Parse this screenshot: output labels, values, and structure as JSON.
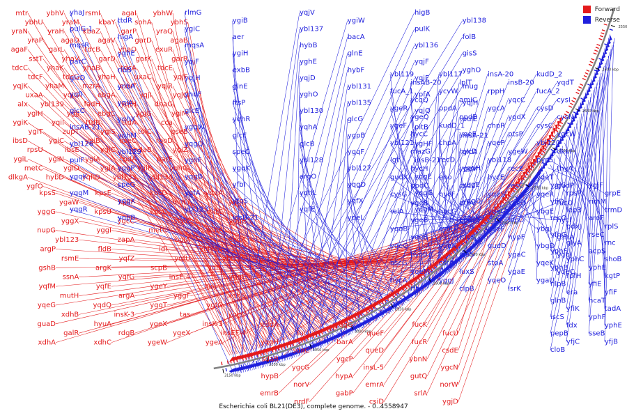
{
  "title": "Escherichia coli BL21(DE3), complete genome. - 0..4558947",
  "legend": [
    {
      "label": "Forward",
      "color": "#e41a1c"
    },
    {
      "label": "Reverse",
      "color": "#2020dd"
    }
  ],
  "colors": {
    "forward": "#e41a1c",
    "reverse": "#2020dd",
    "backbone": "#808080"
  },
  "ticks": [
    "3150 kbp",
    "3100 kbp",
    "3050 kbp",
    "3000 kbp",
    "2950 kbp",
    "2900 kbp",
    "2850 kbp",
    "2800 kbp",
    "2750 kbp",
    "2700 kbp",
    "2650 kbp",
    "2600 kbp",
    "2550 kbp"
  ],
  "forward_genes": [
    [
      "mtr",
      "ybhV",
      "rsmI",
      "agaI",
      "ybhW",
      "ybhU",
      "yraM",
      "kbaY",
      "sohA",
      "ybhS",
      "yraN",
      "yraH",
      "kbaZ",
      "garP",
      "yraQ",
      "yraP",
      "agaD",
      "agaV",
      "garD",
      "agaB",
      "agaF",
      "garL",
      "tdcB",
      "yhaO",
      "exuR",
      "sstT",
      "yhaV",
      "garD",
      "garK",
      "garR",
      "tdcC",
      "yhaK",
      "yhaB",
      "tdcA",
      "tdcE",
      "tdcF",
      "tdcG",
      "yhaH",
      "uxaC",
      "yqjF",
      "yqjK",
      "yhaM",
      "mzrA",
      "exuT",
      "yqjR",
      "uxaA",
      "yqjG",
      "ebgA",
      "yqjI",
      "yqjC",
      "alx",
      "ybl139",
      "fadH",
      "yqjH",
      "dnaG",
      "ygiH",
      "ygjJ",
      "ebgC",
      "ygjG",
      "ygiM",
      "ygiK",
      "yqiI",
      "ttdB",
      "ttdA",
      "cca",
      "ygiT",
      "zupT",
      "ygiS",
      "tolC",
      "qseB",
      "ibsD",
      "ygiC",
      "ygiB",
      "qseC",
      "rpoD",
      "rpsU",
      "ibsE",
      "ygiC",
      "mdaB",
      "ygiZ",
      "ygiL",
      "ygiN",
      "ygiA",
      "cpdA",
      "parE",
      "metC",
      "ygiD",
      "ygiA",
      "ygiF",
      "yqhG",
      "dlkgA",
      "hybD",
      "yqhD",
      "ybl133",
      "ybl134",
      "ygfO"
    ],
    [
      "kpsS",
      "kpsE",
      "kpsD",
      "ygaA",
      "ygaW",
      "kpsF",
      "mutY",
      "yggC",
      "yggG",
      "kpsU",
      "kpsC",
      "mltC",
      "yggX",
      "ygcC",
      "scpC",
      "yggE",
      "nupG",
      "yggI",
      "metC",
      "scpA",
      "ybl123",
      "zapA",
      "bglA",
      "endA",
      "argP",
      "fldB",
      "idi",
      "ybl124",
      "rsmE",
      "yqfZ",
      "yqfU",
      "ybl125",
      "gshB",
      "argK",
      "scpB",
      "yqfS",
      "ssnA",
      "yqfG",
      "insE-4",
      "yggE",
      "yqfM",
      "yqfE",
      "ygeY",
      "insJ-3",
      "mutH",
      "argA",
      "yggF",
      "xdhD",
      "yqeG",
      "yqdQ",
      "yggT",
      "ygfO",
      "xdhB",
      "insK-3",
      "tas",
      "yggU",
      "guaD",
      "hyuA",
      "ygeX",
      "insK-3",
      "galR",
      "rdgB",
      "ygeX",
      "insEF-4",
      "xdhA",
      "xdhC",
      "ygeW",
      "ygeA"
    ],
    [
      "csdA",
      "yqgG",
      "fucK",
      "fucI",
      "queF",
      "fucU",
      "yqgH",
      "barA",
      "fucR",
      "sdaC",
      "queD",
      "csdE",
      "sdaB",
      "ygcP",
      "ybnN",
      "ygcG",
      "insL-5",
      "ygcN",
      "hypB",
      "hypA",
      "gutQ",
      "norV",
      "emrA",
      "norW",
      "emrB",
      "gabP",
      "srlA",
      "nrdF",
      "csiD",
      "ygjD"
    ]
  ],
  "reverse_genes": [
    [
      "yhaJ",
      "rlmG",
      "yqjV",
      "higB",
      "ttdR",
      "ygiB",
      "ygiW",
      "ybl138",
      "pulG-1",
      "ygiC",
      "ybl137",
      "pulK",
      "higA",
      "aer",
      "bacA",
      "folB",
      "mqsR",
      "mqsA",
      "hybB",
      "ybl136",
      "yghE",
      "ygiH",
      "glnE",
      "gisS",
      "parC",
      "yqjF",
      "yghE",
      "yqjF",
      "ribB",
      "exbB",
      "hybF",
      "yghO",
      "glcD",
      "yqjH",
      "yqjD",
      "ygiF",
      "ynbA",
      "glnE",
      "ybl131",
      "mug",
      "yqfI",
      "yhbF",
      "yghO",
      "ypfA",
      "yqiA",
      "ftsP",
      "ybl135",
      "yqjH",
      "glcC",
      "glcE",
      "ybl130",
      "yqjQ",
      "yqhX",
      "yqhR",
      "glcG",
      "pulE",
      "insAB-21",
      "ygqW",
      "yqhA",
      "pitB",
      "yqhM",
      "glcF",
      "ygpB",
      "insA-21",
      "ybl126",
      "yqgQ",
      "glcB",
      "ygHF",
      "ybl129",
      "speC",
      "ygqF",
      "glcA",
      "pulF",
      "yghF",
      "ybl128",
      "insB-21",
      "yqgP",
      "ygqK",
      "ybl127",
      "ygpH",
      "ygqK",
      "yqgB",
      "argO",
      "yqgE",
      "speG",
      "yfbI",
      "yqgD",
      "yqgE",
      "yqgM",
      "yqfA",
      "yqhL",
      "yggG",
      "yqgX",
      "yfqS",
      "yqfX",
      "yqgQ",
      "yqgR",
      "ybl123",
      "yqfE",
      "yqgM",
      "ynbB",
      "insB-21",
      "yqeL",
      "yqeK"
    ],
    [
      "ybl119",
      "ybl117",
      "insA-20",
      "kudD_2",
      "insAB-20",
      "lplT",
      "insB-20",
      "yqdT",
      "fucA_1",
      "ycvW",
      "rppH",
      "fucA_2",
      "ycqQ",
      "amiC",
      "yqcC",
      "cysI",
      "ygeR",
      "ppdA",
      "ygcA",
      "cysD",
      "ygeQ",
      "ppdB",
      "ygdX",
      "cysN",
      "ygeF",
      "kudD_1",
      "chpR",
      "cysC",
      "hycC",
      "yqeE",
      "ptsP",
      "ygcW",
      "ybl121",
      "chpA",
      "yqeP",
      "ybl120",
      "mazG",
      "hycD",
      "ygeW",
      "dkuI",
      "lgt",
      "recD",
      "ybl118",
      "pyrG",
      "hycH",
      "ygeV",
      "recE",
      "thyA",
      "gudX",
      "eno",
      "hycE",
      "yqeT",
      "ppdC",
      "csdL",
      "recC",
      "gudP",
      "cysG",
      "hycF",
      "yqeS",
      "yqeR",
      "ygeB",
      "ptrA",
      "yqeD",
      "fucO",
      "relA",
      "hycG",
      "yqeG",
      "ybgE",
      "ygeB",
      "pcm",
      "nlpD",
      "hycI",
      "yqaB",
      "cysH",
      "yqeF",
      "ybgI",
      "yqeB",
      "rpoS",
      "hypF",
      "gshA",
      "yqeQ",
      "yqeN",
      "gudD",
      "ybgD",
      "hycB",
      "alaS",
      "ygaC",
      "ygbJ",
      "ascG",
      "csrA",
      "stpA",
      "yqeK",
      "yqeM",
      "luxS",
      "ygaE",
      "yqeC",
      "hycA",
      "yggJ",
      "yqeO",
      "ygaU",
      "ffh",
      "clpB",
      "lsrK"
    ],
    [
      "ygjG",
      "ygjF",
      "rpsP",
      "grpE",
      "yfiD",
      "rimM",
      "lepB",
      "trmD",
      "recO",
      "aroF",
      "pdxJ",
      "rplS",
      "yfhG",
      "rseC",
      "glyA",
      "rnc",
      "yphF",
      "acpS",
      "yphC",
      "shoB",
      "yphB",
      "yphE",
      "rpfH",
      "kgtP",
      "nlpB",
      "yfiE",
      "era",
      "yfiF",
      "glnB",
      "hcaT",
      "yfiK",
      "tadA",
      "iscS",
      "yphF",
      "fdx",
      "yphE",
      "pepB",
      "sseB",
      "yfjC",
      "yfjB",
      "cloB"
    ]
  ]
}
